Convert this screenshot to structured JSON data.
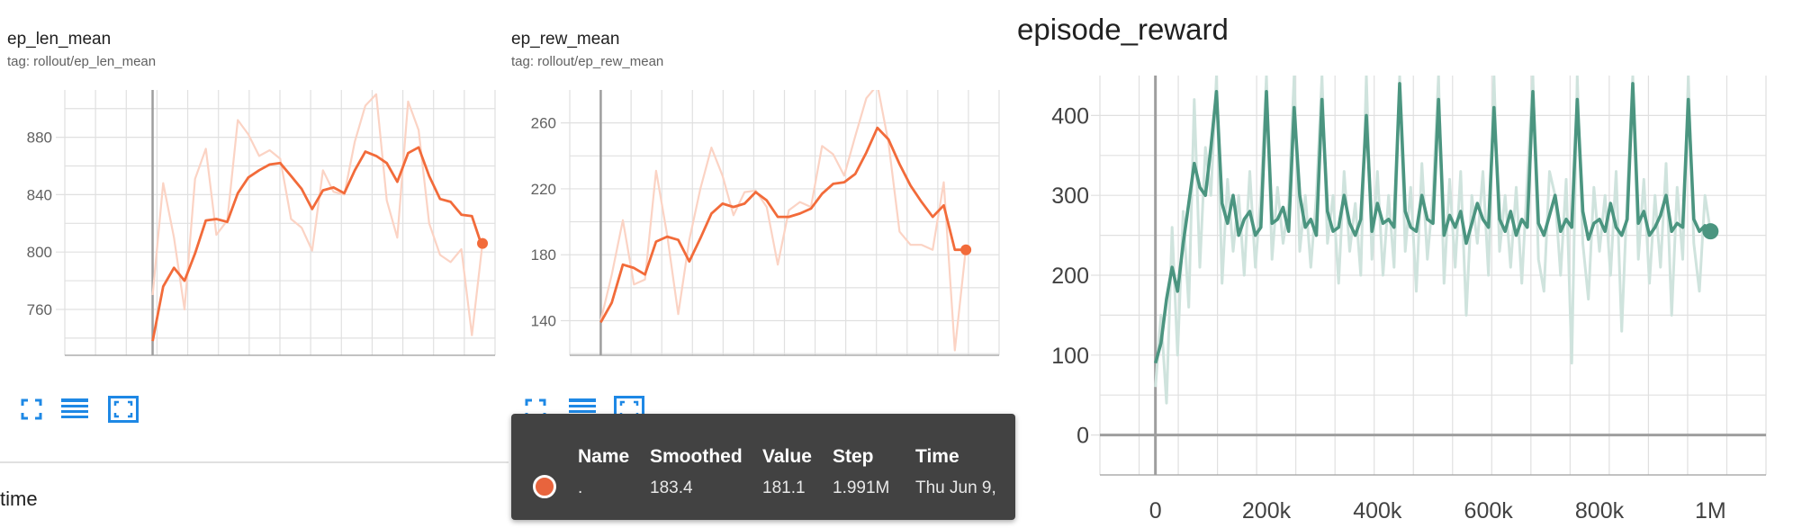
{
  "cards": [
    {
      "title": "ep_len_mean",
      "tag": "tag: rollout/ep_len_mean"
    },
    {
      "title": "ep_rew_mean",
      "tag": "tag: rollout/ep_rew_mean"
    }
  ],
  "main_title": "episode_reward",
  "toolbar_icons": [
    "fullscreen-icon",
    "data-table-icon",
    "fit-domain-icon"
  ],
  "tooltip": {
    "headers": [
      "Name",
      "Smoothed",
      "Value",
      "Step",
      "Time"
    ],
    "row": {
      "name": ".",
      "smoothed": "183.4",
      "value": "181.1",
      "step": "1.991M",
      "time": "Thu Jun 9,"
    }
  },
  "time_label": "time",
  "colors": {
    "orange": "#f26b3a",
    "orange_raw": "#fbd3c4",
    "teal": "#4b9580",
    "teal_raw": "#cfe3dd",
    "tooltip_bg": "#424242",
    "icon_blue": "#1e88e5"
  },
  "chart_data": [
    {
      "type": "line",
      "title": "ep_len_mean",
      "yticks": [
        "760",
        "800",
        "840",
        "880"
      ],
      "ylim": [
        728,
        913
      ],
      "xlim": [
        -0.3,
        1.17
      ],
      "series": [
        {
          "role": "smoothed",
          "x": [
            0.0,
            0.036,
            0.073,
            0.109,
            0.145,
            0.182,
            0.218,
            0.255,
            0.291,
            0.327,
            0.364,
            0.4,
            0.436,
            0.473,
            0.509,
            0.545,
            0.582,
            0.618,
            0.655,
            0.691,
            0.727,
            0.764,
            0.8,
            0.836,
            0.873,
            0.909,
            0.945,
            0.982,
            1.018,
            1.055,
            1.091,
            1.127
          ],
          "values": [
            738,
            776,
            789,
            780,
            799,
            822,
            823,
            821,
            841,
            852,
            857,
            861,
            862,
            853,
            844,
            830,
            843,
            845,
            841,
            857,
            870,
            867,
            862,
            849,
            869,
            873,
            853,
            837,
            835,
            826,
            825,
            803
          ]
        },
        {
          "role": "raw",
          "x": [
            0.0,
            0.036,
            0.073,
            0.109,
            0.145,
            0.182,
            0.218,
            0.255,
            0.291,
            0.327,
            0.364,
            0.4,
            0.436,
            0.473,
            0.509,
            0.545,
            0.582,
            0.618,
            0.655,
            0.691,
            0.727,
            0.764,
            0.8,
            0.836,
            0.873,
            0.909,
            0.945,
            0.982,
            1.018,
            1.055,
            1.091,
            1.127
          ],
          "values": [
            770,
            848,
            810,
            760,
            851,
            872,
            812,
            822,
            892,
            882,
            867,
            871,
            865,
            823,
            817,
            801,
            857,
            842,
            840,
            877,
            902,
            910,
            836,
            810,
            905,
            885,
            820,
            798,
            793,
            802,
            742,
            806
          ]
        }
      ],
      "last_point": 806
    },
    {
      "type": "line",
      "title": "ep_rew_mean",
      "yticks": [
        "140",
        "180",
        "220",
        "260"
      ],
      "ylim": [
        119,
        280
      ],
      "xlim": [
        -0.07,
        0.9
      ],
      "series": [
        {
          "role": "smoothed",
          "x": [
            0.0,
            0.025,
            0.05,
            0.075,
            0.1,
            0.125,
            0.15,
            0.175,
            0.2,
            0.225,
            0.25,
            0.275,
            0.3,
            0.325,
            0.35,
            0.375,
            0.4,
            0.425,
            0.45,
            0.475,
            0.5,
            0.525,
            0.55,
            0.575,
            0.6,
            0.625,
            0.65,
            0.675,
            0.7,
            0.725,
            0.75,
            0.775,
            0.8,
            0.825
          ],
          "values": [
            139,
            151,
            174,
            172,
            168,
            188,
            191,
            189,
            176,
            190,
            205,
            211,
            209,
            211,
            218,
            213,
            203,
            203,
            205,
            208,
            217,
            223,
            224,
            229,
            242,
            257,
            250,
            235,
            222,
            212,
            203,
            210,
            183,
            183
          ]
        },
        {
          "role": "raw",
          "x": [
            0.0,
            0.025,
            0.05,
            0.075,
            0.1,
            0.125,
            0.15,
            0.175,
            0.2,
            0.225,
            0.25,
            0.275,
            0.3,
            0.325,
            0.35,
            0.375,
            0.4,
            0.425,
            0.45,
            0.475,
            0.5,
            0.525,
            0.55,
            0.575,
            0.6,
            0.625,
            0.65,
            0.675,
            0.7,
            0.725,
            0.75,
            0.775,
            0.8,
            0.825
          ],
          "values": [
            140,
            168,
            201,
            162,
            165,
            231,
            192,
            144,
            189,
            220,
            245,
            228,
            204,
            218,
            219,
            209,
            174,
            207,
            212,
            209,
            246,
            241,
            228,
            252,
            275,
            283,
            248,
            194,
            186,
            186,
            183,
            224,
            122,
            184
          ]
        }
      ],
      "last_point": 183
    },
    {
      "type": "line",
      "title": "episode_reward",
      "yticks": [
        "0",
        "100",
        "200",
        "300",
        "400"
      ],
      "xticks": [
        "0",
        "200k",
        "400k",
        "600k",
        "800k",
        "1M"
      ],
      "ylim": [
        -50,
        450
      ],
      "xlim": [
        -100000,
        1100000
      ],
      "series": [
        {
          "role": "smoothed",
          "x": [
            0,
            10000,
            20000,
            30000,
            40000,
            50000,
            60000,
            70000,
            80000,
            90000,
            100000,
            110000,
            120000,
            130000,
            140000,
            150000,
            160000,
            170000,
            180000,
            190000,
            200000,
            210000,
            220000,
            230000,
            240000,
            250000,
            260000,
            270000,
            280000,
            290000,
            300000,
            310000,
            320000,
            330000,
            340000,
            350000,
            360000,
            370000,
            380000,
            390000,
            400000,
            410000,
            420000,
            430000,
            440000,
            450000,
            460000,
            470000,
            480000,
            490000,
            500000,
            510000,
            520000,
            530000,
            540000,
            550000,
            560000,
            570000,
            580000,
            590000,
            600000,
            610000,
            620000,
            630000,
            640000,
            650000,
            660000,
            670000,
            680000,
            690000,
            700000,
            710000,
            720000,
            730000,
            740000,
            750000,
            760000,
            770000,
            780000,
            790000,
            800000,
            810000,
            820000,
            830000,
            840000,
            850000,
            860000,
            870000,
            880000,
            890000,
            900000,
            910000,
            920000,
            930000,
            940000,
            950000,
            960000,
            970000,
            980000,
            990000,
            1000000
          ],
          "values": [
            90,
            115,
            170,
            210,
            180,
            240,
            290,
            340,
            310,
            300,
            360,
            430,
            290,
            265,
            300,
            250,
            270,
            280,
            250,
            260,
            430,
            265,
            270,
            285,
            255,
            410,
            300,
            260,
            270,
            250,
            420,
            280,
            255,
            260,
            300,
            265,
            250,
            270,
            400,
            255,
            290,
            265,
            270,
            260,
            440,
            280,
            260,
            255,
            300,
            270,
            265,
            420,
            250,
            275,
            260,
            280,
            240,
            265,
            290,
            270,
            260,
            410,
            270,
            255,
            280,
            250,
            270,
            260,
            430,
            265,
            250,
            275,
            300,
            255,
            270,
            260,
            420,
            280,
            245,
            265,
            270,
            255,
            290,
            260,
            250,
            270,
            440,
            265,
            280,
            250,
            260,
            275,
            300,
            255,
            265,
            260,
            420,
            270,
            255,
            262,
            255
          ]
        },
        {
          "role": "raw",
          "x": [
            0,
            10000,
            20000,
            30000,
            40000,
            50000,
            60000,
            70000,
            80000,
            90000,
            100000,
            110000,
            120000,
            130000,
            140000,
            150000,
            160000,
            170000,
            180000,
            190000,
            200000,
            210000,
            220000,
            230000,
            240000,
            250000,
            260000,
            270000,
            280000,
            290000,
            300000,
            310000,
            320000,
            330000,
            340000,
            350000,
            360000,
            370000,
            380000,
            390000,
            400000,
            410000,
            420000,
            430000,
            440000,
            450000,
            460000,
            470000,
            480000,
            490000,
            500000,
            510000,
            520000,
            530000,
            540000,
            550000,
            560000,
            570000,
            580000,
            590000,
            600000,
            610000,
            620000,
            630000,
            640000,
            650000,
            660000,
            670000,
            680000,
            690000,
            700000,
            710000,
            720000,
            730000,
            740000,
            750000,
            760000,
            770000,
            780000,
            790000,
            800000,
            810000,
            820000,
            830000,
            840000,
            850000,
            860000,
            870000,
            880000,
            890000,
            900000,
            910000,
            920000,
            930000,
            940000,
            950000,
            960000,
            970000,
            980000,
            990000,
            1000000
          ],
          "values": [
            60,
            150,
            40,
            260,
            100,
            280,
            160,
            420,
            210,
            360,
            300,
            450,
            190,
            320,
            230,
            300,
            200,
            330,
            210,
            300,
            450,
            220,
            310,
            240,
            290,
            450,
            230,
            300,
            210,
            300,
            450,
            240,
            300,
            190,
            330,
            230,
            290,
            200,
            450,
            220,
            330,
            200,
            300,
            210,
            450,
            230,
            310,
            180,
            340,
            220,
            300,
            450,
            190,
            320,
            210,
            330,
            150,
            300,
            240,
            330,
            200,
            450,
            230,
            300,
            210,
            310,
            190,
            320,
            450,
            220,
            180,
            330,
            300,
            200,
            320,
            90,
            450,
            240,
            170,
            310,
            230,
            300,
            200,
            330,
            130,
            300,
            450,
            220,
            320,
            190,
            300,
            210,
            340,
            150,
            310,
            220,
            450,
            240,
            180,
            300,
            255
          ]
        }
      ],
      "last_point": 255
    }
  ]
}
